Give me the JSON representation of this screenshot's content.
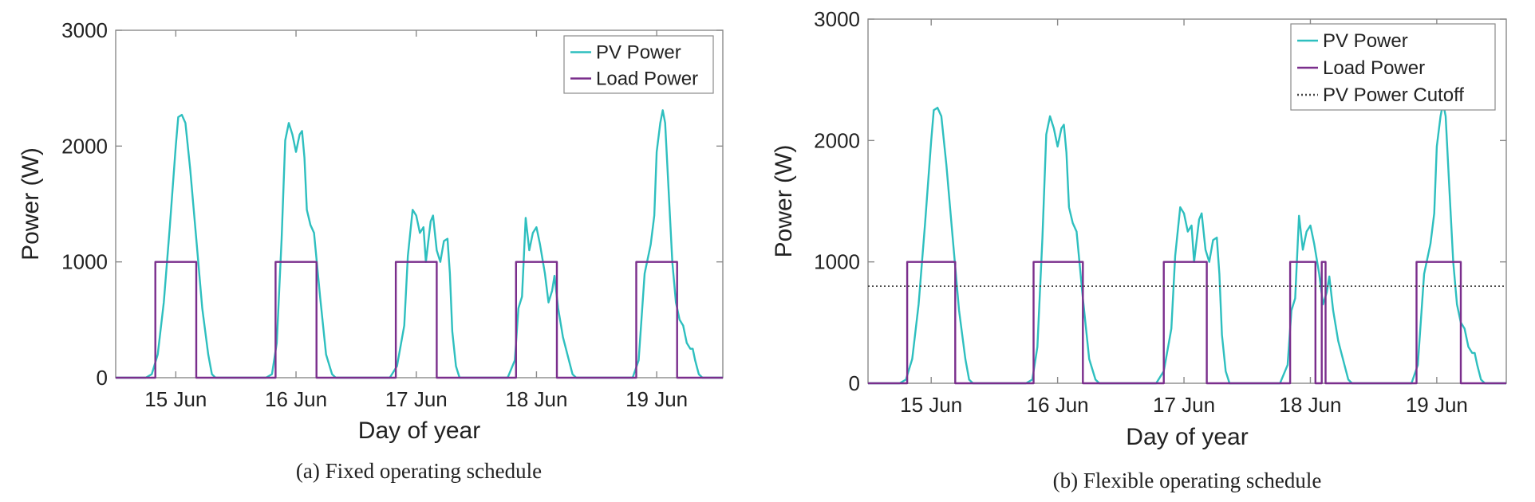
{
  "chart_data": [
    {
      "type": "line",
      "caption": "(a) Fixed operating schedule",
      "xlabel": "Day of year",
      "ylabel": "Power (W)",
      "xlim": [
        14.5,
        19.55
      ],
      "ylim": [
        0,
        3000
      ],
      "x_ticks": [
        15,
        16,
        17,
        18,
        19
      ],
      "x_tick_labels": [
        "15 Jun",
        "16 Jun",
        "17 Jun",
        "18 Jun",
        "19 Jun"
      ],
      "y_ticks": [
        0,
        1000,
        2000,
        3000
      ],
      "y_tick_labels": [
        "0",
        "1000",
        "2000",
        "3000"
      ],
      "grid": false,
      "legend": "top-right",
      "colors": {
        "pv": "#2ebfbf",
        "load": "#7a2e8c",
        "cutoff": "#444444"
      },
      "series": [
        {
          "name": "PV Power",
          "style": "solid",
          "points": [
            [
              14.5,
              0
            ],
            [
              14.75,
              0
            ],
            [
              14.8,
              30
            ],
            [
              14.85,
              200
            ],
            [
              14.9,
              650
            ],
            [
              14.95,
              1300
            ],
            [
              15.0,
              2000
            ],
            [
              15.02,
              2250
            ],
            [
              15.05,
              2270
            ],
            [
              15.08,
              2200
            ],
            [
              15.12,
              1800
            ],
            [
              15.17,
              1200
            ],
            [
              15.22,
              600
            ],
            [
              15.27,
              200
            ],
            [
              15.3,
              30
            ],
            [
              15.33,
              0
            ],
            [
              15.75,
              0
            ],
            [
              15.8,
              30
            ],
            [
              15.84,
              300
            ],
            [
              15.88,
              1200
            ],
            [
              15.91,
              2050
            ],
            [
              15.94,
              2200
            ],
            [
              15.97,
              2100
            ],
            [
              16.0,
              1950
            ],
            [
              16.03,
              2100
            ],
            [
              16.05,
              2130
            ],
            [
              16.07,
              1900
            ],
            [
              16.09,
              1450
            ],
            [
              16.12,
              1320
            ],
            [
              16.15,
              1250
            ],
            [
              16.2,
              700
            ],
            [
              16.25,
              200
            ],
            [
              16.3,
              30
            ],
            [
              16.33,
              0
            ],
            [
              16.78,
              0
            ],
            [
              16.84,
              100
            ],
            [
              16.9,
              450
            ],
            [
              16.93,
              1050
            ],
            [
              16.97,
              1450
            ],
            [
              17.0,
              1400
            ],
            [
              17.03,
              1250
            ],
            [
              17.06,
              1300
            ],
            [
              17.08,
              1000
            ],
            [
              17.12,
              1350
            ],
            [
              17.14,
              1400
            ],
            [
              17.17,
              1100
            ],
            [
              17.2,
              1000
            ],
            [
              17.23,
              1180
            ],
            [
              17.26,
              1200
            ],
            [
              17.28,
              900
            ],
            [
              17.3,
              400
            ],
            [
              17.33,
              100
            ],
            [
              17.36,
              0
            ],
            [
              17.76,
              0
            ],
            [
              17.82,
              150
            ],
            [
              17.85,
              600
            ],
            [
              17.88,
              700
            ],
            [
              17.91,
              1380
            ],
            [
              17.94,
              1100
            ],
            [
              17.97,
              1250
            ],
            [
              18.0,
              1300
            ],
            [
              18.03,
              1150
            ],
            [
              18.07,
              900
            ],
            [
              18.1,
              650
            ],
            [
              18.13,
              750
            ],
            [
              18.15,
              880
            ],
            [
              18.18,
              600
            ],
            [
              18.22,
              350
            ],
            [
              18.27,
              150
            ],
            [
              18.3,
              30
            ],
            [
              18.33,
              0
            ],
            [
              18.8,
              0
            ],
            [
              18.85,
              150
            ],
            [
              18.9,
              900
            ],
            [
              18.95,
              1150
            ],
            [
              18.98,
              1400
            ],
            [
              19.0,
              1950
            ],
            [
              19.03,
              2200
            ],
            [
              19.05,
              2310
            ],
            [
              19.07,
              2200
            ],
            [
              19.1,
              1600
            ],
            [
              19.13,
              1000
            ],
            [
              19.16,
              650
            ],
            [
              19.19,
              500
            ],
            [
              19.22,
              450
            ],
            [
              19.25,
              300
            ],
            [
              19.28,
              250
            ],
            [
              19.3,
              250
            ],
            [
              19.32,
              150
            ],
            [
              19.35,
              30
            ],
            [
              19.38,
              0
            ],
            [
              19.55,
              0
            ]
          ]
        },
        {
          "name": "Load Power",
          "style": "solid",
          "points": [
            [
              14.5,
              0
            ],
            [
              14.83,
              0
            ],
            [
              14.83,
              1000
            ],
            [
              15.17,
              1000
            ],
            [
              15.17,
              0
            ],
            [
              15.83,
              0
            ],
            [
              15.83,
              1000
            ],
            [
              16.17,
              1000
            ],
            [
              16.17,
              0
            ],
            [
              16.83,
              0
            ],
            [
              16.83,
              1000
            ],
            [
              17.17,
              1000
            ],
            [
              17.17,
              0
            ],
            [
              17.83,
              0
            ],
            [
              17.83,
              1000
            ],
            [
              18.17,
              1000
            ],
            [
              18.17,
              0
            ],
            [
              18.83,
              0
            ],
            [
              18.83,
              1000
            ],
            [
              19.17,
              1000
            ],
            [
              19.17,
              0
            ],
            [
              19.55,
              0
            ]
          ]
        }
      ]
    },
    {
      "type": "line",
      "caption": "(b) Flexible operating schedule",
      "xlabel": "Day of year",
      "ylabel": "Power (W)",
      "xlim": [
        14.5,
        19.55
      ],
      "ylim": [
        0,
        3000
      ],
      "x_ticks": [
        15,
        16,
        17,
        18,
        19
      ],
      "x_tick_labels": [
        "15 Jun",
        "16 Jun",
        "17 Jun",
        "18 Jun",
        "19 Jun"
      ],
      "y_ticks": [
        0,
        1000,
        2000,
        3000
      ],
      "y_tick_labels": [
        "0",
        "1000",
        "2000",
        "3000"
      ],
      "grid": false,
      "legend": "top-right",
      "colors": {
        "pv": "#2ebfbf",
        "load": "#7a2e8c",
        "cutoff": "#444444"
      },
      "series": [
        {
          "name": "PV Power",
          "style": "solid",
          "points": [
            [
              14.5,
              0
            ],
            [
              14.75,
              0
            ],
            [
              14.8,
              30
            ],
            [
              14.85,
              200
            ],
            [
              14.9,
              650
            ],
            [
              14.95,
              1300
            ],
            [
              15.0,
              2000
            ],
            [
              15.02,
              2250
            ],
            [
              15.05,
              2270
            ],
            [
              15.08,
              2200
            ],
            [
              15.12,
              1800
            ],
            [
              15.17,
              1200
            ],
            [
              15.22,
              600
            ],
            [
              15.27,
              200
            ],
            [
              15.3,
              30
            ],
            [
              15.33,
              0
            ],
            [
              15.75,
              0
            ],
            [
              15.8,
              30
            ],
            [
              15.84,
              300
            ],
            [
              15.88,
              1200
            ],
            [
              15.91,
              2050
            ],
            [
              15.94,
              2200
            ],
            [
              15.97,
              2100
            ],
            [
              16.0,
              1950
            ],
            [
              16.03,
              2100
            ],
            [
              16.05,
              2130
            ],
            [
              16.07,
              1900
            ],
            [
              16.09,
              1450
            ],
            [
              16.12,
              1320
            ],
            [
              16.15,
              1250
            ],
            [
              16.2,
              700
            ],
            [
              16.25,
              200
            ],
            [
              16.3,
              30
            ],
            [
              16.33,
              0
            ],
            [
              16.78,
              0
            ],
            [
              16.84,
              100
            ],
            [
              16.9,
              450
            ],
            [
              16.93,
              1050
            ],
            [
              16.97,
              1450
            ],
            [
              17.0,
              1400
            ],
            [
              17.03,
              1250
            ],
            [
              17.06,
              1300
            ],
            [
              17.08,
              1000
            ],
            [
              17.12,
              1350
            ],
            [
              17.14,
              1400
            ],
            [
              17.17,
              1100
            ],
            [
              17.2,
              1000
            ],
            [
              17.23,
              1180
            ],
            [
              17.26,
              1200
            ],
            [
              17.28,
              900
            ],
            [
              17.3,
              400
            ],
            [
              17.33,
              100
            ],
            [
              17.36,
              0
            ],
            [
              17.76,
              0
            ],
            [
              17.82,
              150
            ],
            [
              17.85,
              600
            ],
            [
              17.88,
              700
            ],
            [
              17.91,
              1380
            ],
            [
              17.94,
              1100
            ],
            [
              17.97,
              1250
            ],
            [
              18.0,
              1300
            ],
            [
              18.03,
              1150
            ],
            [
              18.07,
              900
            ],
            [
              18.1,
              650
            ],
            [
              18.13,
              750
            ],
            [
              18.15,
              880
            ],
            [
              18.18,
              600
            ],
            [
              18.22,
              350
            ],
            [
              18.27,
              150
            ],
            [
              18.3,
              30
            ],
            [
              18.33,
              0
            ],
            [
              18.8,
              0
            ],
            [
              18.85,
              150
            ],
            [
              18.9,
              900
            ],
            [
              18.95,
              1150
            ],
            [
              18.98,
              1400
            ],
            [
              19.0,
              1950
            ],
            [
              19.03,
              2200
            ],
            [
              19.05,
              2310
            ],
            [
              19.07,
              2200
            ],
            [
              19.1,
              1600
            ],
            [
              19.13,
              1000
            ],
            [
              19.16,
              650
            ],
            [
              19.19,
              500
            ],
            [
              19.22,
              450
            ],
            [
              19.25,
              300
            ],
            [
              19.28,
              250
            ],
            [
              19.3,
              250
            ],
            [
              19.32,
              150
            ],
            [
              19.35,
              30
            ],
            [
              19.38,
              0
            ],
            [
              19.55,
              0
            ]
          ]
        },
        {
          "name": "Load Power",
          "style": "solid",
          "points": [
            [
              14.5,
              0
            ],
            [
              14.81,
              0
            ],
            [
              14.81,
              1000
            ],
            [
              15.19,
              1000
            ],
            [
              15.19,
              0
            ],
            [
              15.81,
              0
            ],
            [
              15.81,
              1000
            ],
            [
              16.2,
              1000
            ],
            [
              16.2,
              0
            ],
            [
              16.84,
              0
            ],
            [
              16.84,
              1000
            ],
            [
              17.18,
              1000
            ],
            [
              17.18,
              0
            ],
            [
              17.84,
              0
            ],
            [
              17.84,
              1000
            ],
            [
              18.04,
              1000
            ],
            [
              18.04,
              0
            ],
            [
              18.09,
              0
            ],
            [
              18.09,
              1000
            ],
            [
              18.12,
              1000
            ],
            [
              18.12,
              0
            ],
            [
              18.84,
              0
            ],
            [
              18.84,
              1000
            ],
            [
              19.19,
              1000
            ],
            [
              19.19,
              0
            ],
            [
              19.55,
              0
            ]
          ]
        },
        {
          "name": "PV Power Cutoff",
          "style": "dotted",
          "points": [
            [
              14.5,
              800
            ],
            [
              19.55,
              800
            ]
          ]
        }
      ]
    }
  ]
}
